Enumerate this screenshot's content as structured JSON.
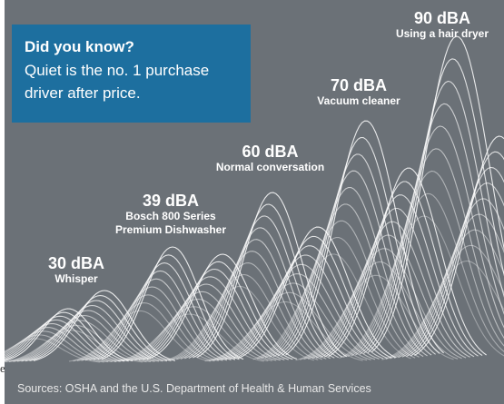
{
  "edge_char": "e,",
  "callout": {
    "heading": "Did you know?",
    "body_line1": "Quiet is the no. 1 purchase",
    "body_line2": "driver after price."
  },
  "levels": [
    {
      "db": "30 dBA",
      "desc": [
        "Whisper"
      ]
    },
    {
      "db": "39 dBA",
      "desc": [
        "Bosch 800 Series",
        "Premium Dishwasher"
      ]
    },
    {
      "db": "60 dBA",
      "desc": [
        "Normal conversation"
      ]
    },
    {
      "db": "70 dBA",
      "desc": [
        "Vacuum cleaner"
      ]
    },
    {
      "db": "90 dBA",
      "desc": [
        "Using a hair dryer"
      ]
    }
  ],
  "source": "Sources: OSHA and the U.S. Department of Health & Human Services",
  "colors": {
    "panel": "#6b7177",
    "callout": "#1d6f9f",
    "wave": "#ffffff"
  }
}
